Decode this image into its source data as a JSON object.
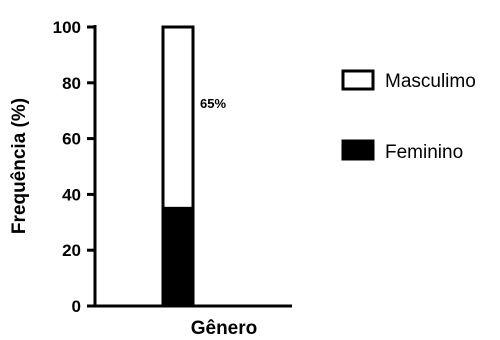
{
  "chart_data": {
    "type": "bar",
    "stacked": true,
    "categories": [
      ""
    ],
    "series": [
      {
        "name": "Feminino",
        "values": [
          35
        ],
        "color": "#000000"
      },
      {
        "name": "Masculimo",
        "values": [
          65
        ],
        "color": "#ffffff"
      }
    ],
    "xlabel": "Gênero",
    "ylabel": "Frequência (%)",
    "ylim": [
      0,
      100
    ],
    "yticks": [
      0,
      20,
      40,
      60,
      80,
      100
    ],
    "annotations": [
      {
        "text": "65%",
        "series": "Masculimo"
      }
    ],
    "legend": {
      "position": "right",
      "entries": [
        "Masculimo",
        "Feminino"
      ]
    },
    "grid": false
  }
}
